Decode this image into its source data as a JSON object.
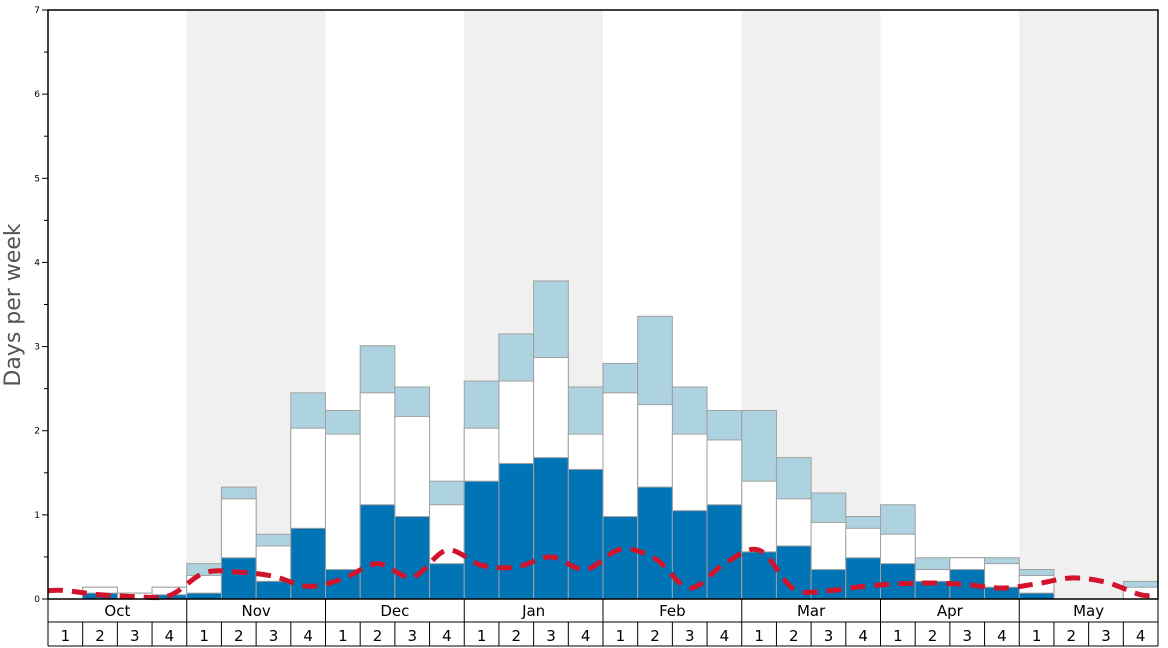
{
  "chart_data": {
    "type": "bar",
    "ylabel": "Days per week",
    "ylim": [
      0,
      7
    ],
    "yticks": [
      0,
      1,
      2,
      3,
      4,
      5,
      6,
      7
    ],
    "grid": false,
    "months": [
      "Oct",
      "Nov",
      "Dec",
      "Jan",
      "Feb",
      "Mar",
      "Apr",
      "May"
    ],
    "weeks": [
      "1",
      "2",
      "3",
      "4"
    ],
    "colors": {
      "dark": "#0174b6",
      "white": "#ffffff",
      "light": "#aed3e0",
      "line": "#d0142c",
      "shade": "#f0f0f0",
      "bar_edge": "#a0a0a0"
    },
    "series": [
      {
        "key": "dark",
        "values": [
          0.0,
          0.07,
          0.0,
          0.05,
          0.07,
          0.49,
          0.21,
          0.84,
          0.35,
          1.12,
          0.98,
          0.42,
          1.4,
          1.61,
          1.68,
          1.54,
          0.98,
          1.33,
          1.05,
          1.12,
          0.56,
          0.63,
          0.35,
          0.49,
          0.42,
          0.21,
          0.35,
          0.14,
          0.07,
          0.0,
          0.0,
          0.0
        ]
      },
      {
        "key": "white",
        "values": [
          0.0,
          0.14,
          0.07,
          0.14,
          0.28,
          1.19,
          0.63,
          2.03,
          1.96,
          2.45,
          2.17,
          1.12,
          2.03,
          2.59,
          2.87,
          1.96,
          2.45,
          2.31,
          1.96,
          1.89,
          1.4,
          1.19,
          0.91,
          0.84,
          0.77,
          0.35,
          0.49,
          0.42,
          0.28,
          0.0,
          0.0,
          0.14
        ]
      },
      {
        "key": "light",
        "values": [
          0.0,
          0.14,
          0.07,
          0.14,
          0.42,
          1.33,
          0.77,
          2.45,
          2.24,
          3.01,
          2.52,
          1.4,
          2.59,
          3.15,
          3.78,
          2.52,
          2.8,
          3.36,
          2.52,
          2.24,
          2.24,
          1.68,
          1.26,
          0.98,
          1.12,
          0.49,
          0.49,
          0.49,
          0.35,
          0.0,
          0.0,
          0.21
        ]
      }
    ],
    "line": {
      "style": "dashed",
      "values": [
        0.1,
        0.05,
        0.03,
        0.04,
        0.31,
        0.32,
        0.27,
        0.15,
        0.24,
        0.42,
        0.26,
        0.58,
        0.4,
        0.38,
        0.5,
        0.35,
        0.59,
        0.48,
        0.13,
        0.42,
        0.58,
        0.12,
        0.1,
        0.15,
        0.18,
        0.19,
        0.17,
        0.13,
        0.18,
        0.25,
        0.2,
        0.05
      ]
    }
  }
}
